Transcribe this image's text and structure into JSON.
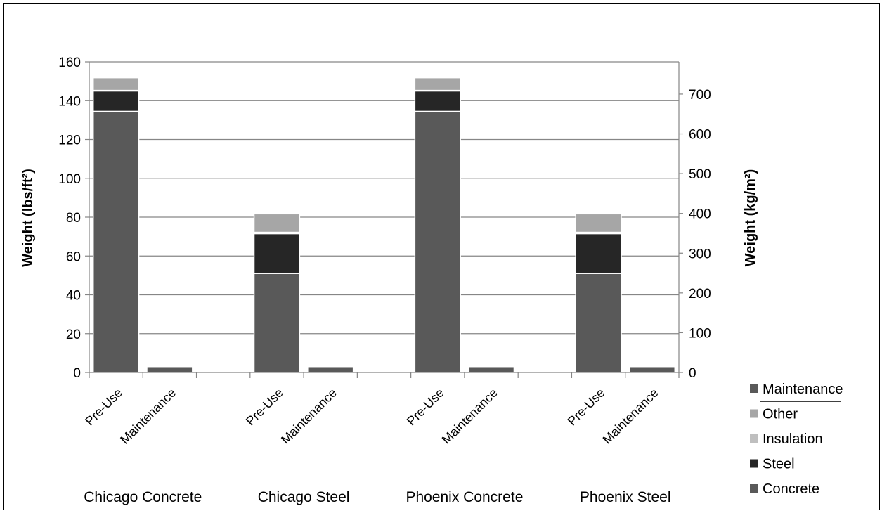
{
  "chart_data": {
    "type": "bar",
    "stacked": true,
    "groups": [
      "Chicago Concrete",
      "Chicago Steel",
      "Phoenix Concrete",
      "Phoenix Steel"
    ],
    "bar_labels": [
      "Pre-Use",
      "Maintenance"
    ],
    "categories": [
      "Chicago Concrete Pre-Use",
      "Chicago Concrete Maintenance",
      "Chicago Steel Pre-Use",
      "Chicago Steel Maintenance",
      "Phoenix Concrete Pre-Use",
      "Phoenix Concrete Maintenance",
      "Phoenix Steel Pre-Use",
      "Phoenix Steel Maintenance"
    ],
    "series": [
      {
        "name": "Concrete",
        "color": "#595959",
        "values": [
          134.5,
          0,
          51,
          0,
          134.5,
          0,
          51,
          0
        ]
      },
      {
        "name": "Steel",
        "color": "#262626",
        "values": [
          10.5,
          0,
          20.5,
          0,
          10.5,
          0,
          20.5,
          0
        ]
      },
      {
        "name": "Insulation",
        "color": "#bfbfbf",
        "values": [
          0.3,
          0,
          0.7,
          0,
          0.3,
          0,
          0.7,
          0
        ]
      },
      {
        "name": "Other",
        "color": "#a6a6a6",
        "values": [
          6.5,
          0,
          9.5,
          0,
          6.5,
          0,
          9.5,
          0
        ]
      },
      {
        "name": "Maintenance",
        "color": "#595959",
        "values": [
          0,
          3,
          0,
          3,
          0,
          3,
          0,
          3
        ]
      }
    ],
    "legend_order": [
      "Maintenance",
      "Other",
      "Insulation",
      "Steel",
      "Concrete"
    ],
    "legend_position": "right",
    "ylabel": "Weight (lbs/ft²)",
    "y2label": "Weight (kg/m²)",
    "ylim": [
      0,
      160
    ],
    "yticks": [
      0,
      20,
      40,
      60,
      80,
      100,
      120,
      140,
      160
    ],
    "y2lim": [
      0,
      781.2
    ],
    "y2ticks": [
      0,
      100,
      200,
      300,
      400,
      500,
      600,
      700
    ],
    "grid": true
  }
}
